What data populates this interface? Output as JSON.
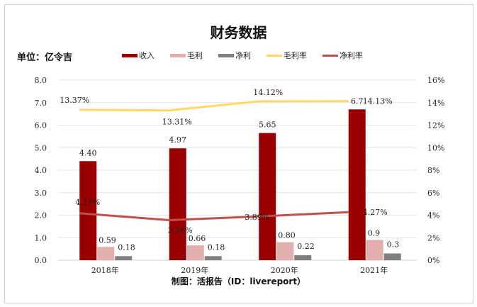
{
  "chart_data": {
    "type": "bar",
    "title": "财务数据",
    "unit_label": "单位：亿令吉",
    "source": "制图：活报告（ID：livereport）",
    "categories": [
      "2018年",
      "2019年",
      "2020年",
      "2021年"
    ],
    "series": [
      {
        "name": "收入",
        "type": "bar",
        "axis": "left",
        "color": "#9b0000",
        "values": [
          4.4,
          4.97,
          5.65,
          6.7
        ],
        "labels": [
          "4.40",
          "4.97",
          "5.65",
          "6.7"
        ]
      },
      {
        "name": "毛利",
        "type": "bar",
        "axis": "left",
        "color": "#e3aeae",
        "values": [
          0.59,
          0.66,
          0.8,
          0.9
        ],
        "labels": [
          "0.59",
          "0.66",
          "0.80",
          "0.9"
        ]
      },
      {
        "name": "净利",
        "type": "bar",
        "axis": "left",
        "color": "#7f7f7f",
        "values": [
          0.18,
          0.18,
          0.22,
          0.3
        ],
        "labels": [
          "0.18",
          "0.18",
          "0.22",
          "0.3"
        ]
      },
      {
        "name": "毛利率",
        "type": "line",
        "axis": "right",
        "color": "#ffd966",
        "values": [
          13.37,
          13.31,
          14.12,
          14.13
        ],
        "labels": [
          "13.37%",
          "13.31%",
          "14.12%",
          "14.13%"
        ]
      },
      {
        "name": "净利率",
        "type": "line",
        "axis": "right",
        "color": "#c0504d",
        "values": [
          4.17,
          3.56,
          3.89,
          4.27
        ],
        "labels": [
          "4.17%",
          "3.56%",
          "3.89%",
          "4.27%"
        ]
      }
    ],
    "y_left": {
      "range": [
        0,
        8
      ],
      "ticks": [
        "0.0",
        "1.0",
        "2.0",
        "3.0",
        "4.0",
        "5.0",
        "6.0",
        "7.0",
        "8.0"
      ]
    },
    "y_right": {
      "range": [
        0,
        16
      ],
      "ticks": [
        "0%",
        "2%",
        "4%",
        "6%",
        "8%",
        "10%",
        "12%",
        "14%",
        "16%"
      ]
    },
    "grid": true,
    "legend": "top"
  }
}
